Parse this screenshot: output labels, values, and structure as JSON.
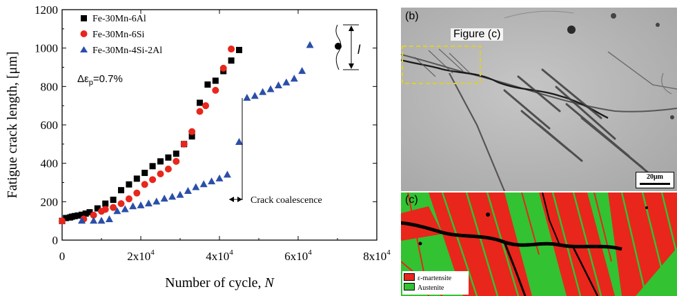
{
  "chart_data": {
    "type": "scatter",
    "xlabel": "Number of cycle, ",
    "xlabel_var": "N",
    "ylabel": "Fatigue crack length, [μm]",
    "xlim": [
      0,
      80000
    ],
    "ylim": [
      0,
      1200
    ],
    "x_ticks": [
      0,
      20000,
      40000,
      60000,
      80000
    ],
    "x_tick_labels": [
      {
        "base": "0",
        "exp": ""
      },
      {
        "base": "2x10",
        "exp": "4"
      },
      {
        "base": "4x10",
        "exp": "4"
      },
      {
        "base": "6x10",
        "exp": "4"
      },
      {
        "base": "8x10",
        "exp": "4"
      }
    ],
    "y_ticks": [
      0,
      200,
      400,
      600,
      800,
      1000,
      1200
    ],
    "y_tick_labels": [
      "0",
      "200",
      "400",
      "600",
      "800",
      "1000",
      "1200"
    ],
    "legend_position": "top-left",
    "series": [
      {
        "name": "Fe-30Mn-6Al",
        "color": "#000000",
        "marker": "square",
        "points": [
          [
            0,
            100
          ],
          [
            1000,
            115
          ],
          [
            2000,
            118
          ],
          [
            2500,
            122
          ],
          [
            3200,
            125
          ],
          [
            4000,
            128
          ],
          [
            5000,
            132
          ],
          [
            6000,
            138
          ],
          [
            7000,
            145
          ],
          [
            9000,
            165
          ],
          [
            11000,
            190
          ],
          [
            13000,
            210
          ],
          [
            15000,
            260
          ],
          [
            17000,
            290
          ],
          [
            19000,
            320
          ],
          [
            21000,
            350
          ],
          [
            23000,
            385
          ],
          [
            25000,
            410
          ],
          [
            27000,
            430
          ],
          [
            29000,
            450
          ],
          [
            31000,
            500
          ],
          [
            33000,
            540
          ],
          [
            35000,
            715
          ],
          [
            37000,
            810
          ],
          [
            39000,
            830
          ],
          [
            41000,
            880
          ],
          [
            43000,
            935
          ],
          [
            45000,
            990
          ]
        ]
      },
      {
        "name": "Fe-30Mn-6Si",
        "color": "#e8261c",
        "marker": "circle",
        "points": [
          [
            0,
            100
          ],
          [
            5500,
            110
          ],
          [
            8000,
            130
          ],
          [
            10000,
            150
          ],
          [
            11000,
            160
          ],
          [
            13000,
            170
          ],
          [
            15000,
            190
          ],
          [
            17000,
            215
          ],
          [
            19000,
            245
          ],
          [
            21000,
            290
          ],
          [
            23000,
            315
          ],
          [
            25000,
            345
          ],
          [
            27000,
            370
          ],
          [
            29000,
            410
          ],
          [
            31000,
            500
          ],
          [
            33000,
            565
          ],
          [
            35000,
            670
          ],
          [
            36500,
            700
          ],
          [
            39000,
            780
          ],
          [
            41000,
            895
          ],
          [
            43000,
            995
          ]
        ]
      },
      {
        "name": "Fe-30Mn-4Si-2Al",
        "color": "#2b4fa8",
        "marker": "triangle",
        "points": [
          [
            5000,
            100
          ],
          [
            8000,
            100
          ],
          [
            10000,
            100
          ],
          [
            12000,
            108
          ],
          [
            14000,
            150
          ],
          [
            16000,
            160
          ],
          [
            18000,
            175
          ],
          [
            20000,
            180
          ],
          [
            22000,
            190
          ],
          [
            24000,
            200
          ],
          [
            26000,
            215
          ],
          [
            28000,
            225
          ],
          [
            30000,
            235
          ],
          [
            32000,
            255
          ],
          [
            34000,
            275
          ],
          [
            36000,
            290
          ],
          [
            38000,
            305
          ],
          [
            40000,
            320
          ],
          [
            42000,
            340
          ],
          [
            45000,
            510
          ],
          [
            47000,
            740
          ],
          [
            49000,
            750
          ],
          [
            51000,
            770
          ],
          [
            53000,
            785
          ],
          [
            55000,
            805
          ],
          [
            57000,
            820
          ],
          [
            59000,
            840
          ],
          [
            61000,
            880
          ],
          [
            63000,
            1015
          ]
        ]
      }
    ],
    "annotations": {
      "strain_prefix": "Δε",
      "strain_sub": "p",
      "strain_value": "=0.7%",
      "crack_coalescence": "Crack coalescence",
      "specimen_length_symbol": "l",
      "crack_jump_x": 43500
    }
  },
  "micrograph_b": {
    "panel_label": "(b)",
    "inset_label": "Figure (c)",
    "scale_bar": "20μm"
  },
  "micrograph_c": {
    "panel_label": "(c)",
    "legend": [
      {
        "label": "ε-martensite",
        "color": "#e8261c"
      },
      {
        "label": "Austenite",
        "color": "#32c232"
      }
    ]
  }
}
